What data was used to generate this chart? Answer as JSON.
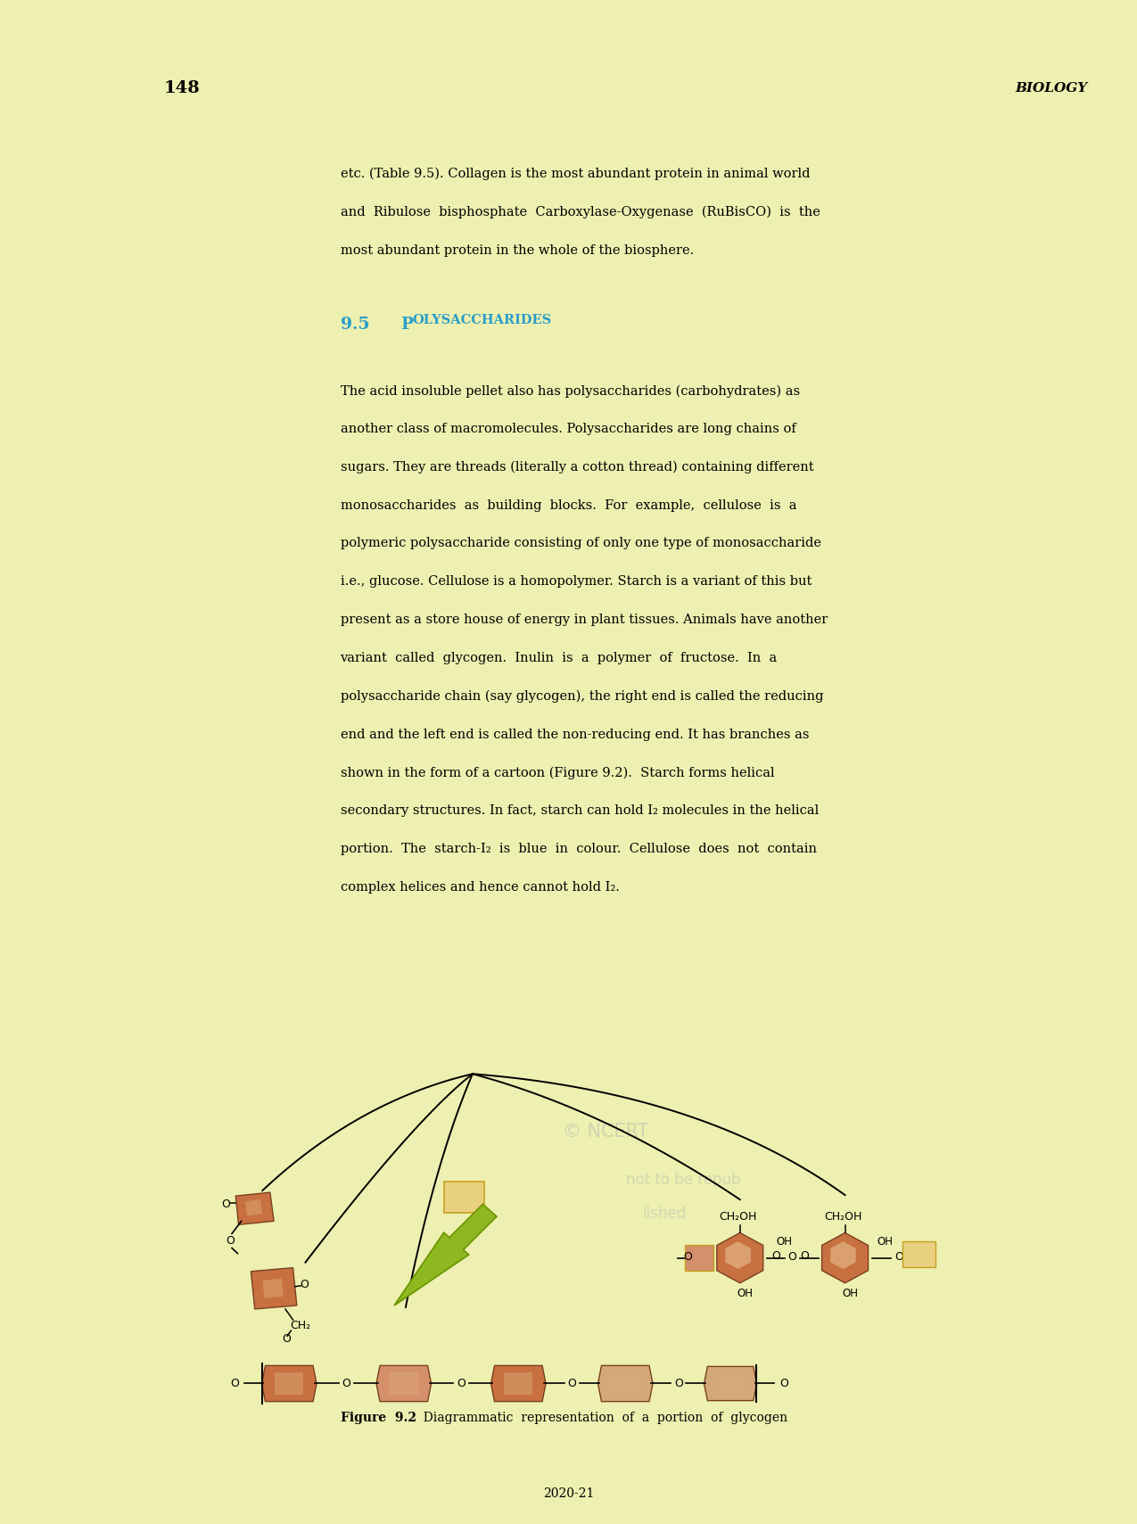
{
  "page_number": "148",
  "header_right": "BIOLOGY",
  "footer_text": "2020-21",
  "bg_yellow": "#edf0b0",
  "bg_green_bottom": "#cdd84a",
  "header_bg": "#d8d8d8",
  "white": "#ffffff",
  "section_color": "#2b9dc9",
  "sugar_fill": "#c87040",
  "sugar_fill2": "#d4956a",
  "sugar_highlight": "#e0b090",
  "arrow_fill": "#8db820",
  "arrow_edge": "#6a9400",
  "rect_fill": "#e8d080",
  "rect_edge": "#c8a020",
  "text_black": "#000000",
  "wm_color": "#b0b0b0",
  "line_width": 1.3,
  "body1_lines": [
    "etc. (Table 9.5). Collagen is the most abundant protein in animal world",
    "and  Ribulose  bisphosphate  Carboxylase-Oxygenase  (RuBisCO)  is  the",
    "most abundant protein in the whole of the biosphere."
  ],
  "body2_lines": [
    "The acid insoluble pellet also has polysaccharides (carbohydrates) as",
    "another class of macromolecules. Polysaccharides are long chains of",
    "sugars. They are threads (literally a cotton thread) containing different",
    "monosaccharides  as  building  blocks.  For  example,  cellulose  is  a",
    "polymeric polysaccharide consisting of only one type of monosaccharide",
    "i.e., glucose. Cellulose is a homopolymer. Starch is a variant of this but",
    "present as a store house of energy in plant tissues. Animals have another",
    "variant  called  glycogen.  Inulin  is  a  polymer  of  fructose.  In  a",
    "polysaccharide chain (say glycogen), the right end is called the reducing",
    "end and the left end is called the non-reducing end. It has branches as",
    "shown in the form of a cartoon (Figure 9.2).  Starch forms helical",
    "secondary structures. In fact, starch can hold I₂ molecules in the helical",
    "portion.  The  starch-I₂  is  blue  in  colour.  Cellulose  does  not  contain",
    "complex helices and hence cannot hold I₂."
  ],
  "fig_caption_bold": "Figure  9.2",
  "fig_caption_rest": "  Diagrammatic  representation  of  a  portion  of  glycogen"
}
